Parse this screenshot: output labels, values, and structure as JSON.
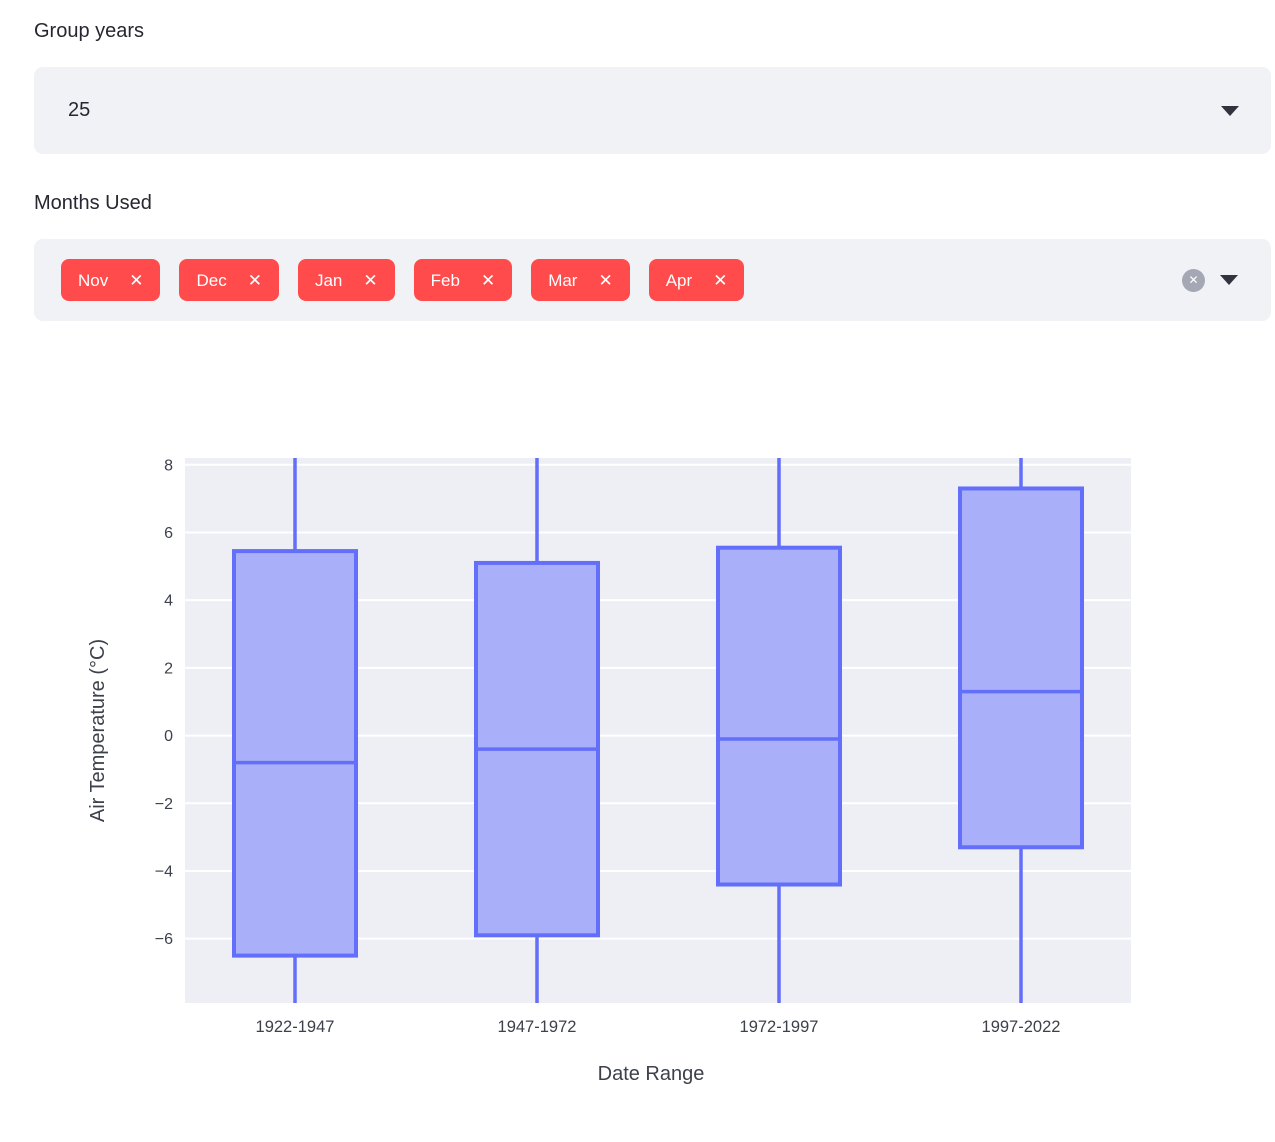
{
  "controls": {
    "group_years": {
      "label": "Group years",
      "value": "25"
    },
    "months_used": {
      "label": "Months Used",
      "selected": [
        "Nov",
        "Dec",
        "Jan",
        "Feb",
        "Mar",
        "Apr"
      ],
      "remove_icon": "✕",
      "clear_all_icon": "✕"
    }
  },
  "colors": {
    "accent_red": "#ff4b4b",
    "input_bg": "#f0f2f6",
    "text_dark": "#262730",
    "clear_circle": "#a3a8b4"
  },
  "chart_data": {
    "type": "box",
    "title": "",
    "xlabel": "Date Range",
    "ylabel": "Air Temperature (°C)",
    "categories": [
      "1922-1947",
      "1947-1972",
      "1972-1997",
      "1997-2022"
    ],
    "yticks": [
      8,
      6,
      4,
      2,
      0,
      -2,
      -4,
      -6
    ],
    "ylim": [
      -7.9,
      8.2
    ],
    "grid": "white horizontal gridlines on light plot background",
    "legend": "none",
    "whiskers_note": "all whiskers extend beyond the y-axis range and are clipped at the top and bottom plot edges",
    "boxes": [
      {
        "category": "1922-1947",
        "q1": -6.5,
        "median": -0.8,
        "q3": 5.45,
        "whisker_low": null,
        "whisker_high": null
      },
      {
        "category": "1947-1972",
        "q1": -5.9,
        "median": -0.4,
        "q3": 5.1,
        "whisker_low": null,
        "whisker_high": null
      },
      {
        "category": "1972-1997",
        "q1": -4.4,
        "median": -0.1,
        "q3": 5.55,
        "whisker_low": null,
        "whisker_high": null
      },
      {
        "category": "1997-2022",
        "q1": -3.3,
        "median": 1.3,
        "q3": 7.3,
        "whisker_low": null,
        "whisker_high": null
      }
    ],
    "colors": {
      "line": "#636efa",
      "box_fill": "#a9aff8",
      "plot_bg": "#edeff4",
      "gridline": "#ffffff",
      "tick_text": "#3c414b"
    }
  }
}
